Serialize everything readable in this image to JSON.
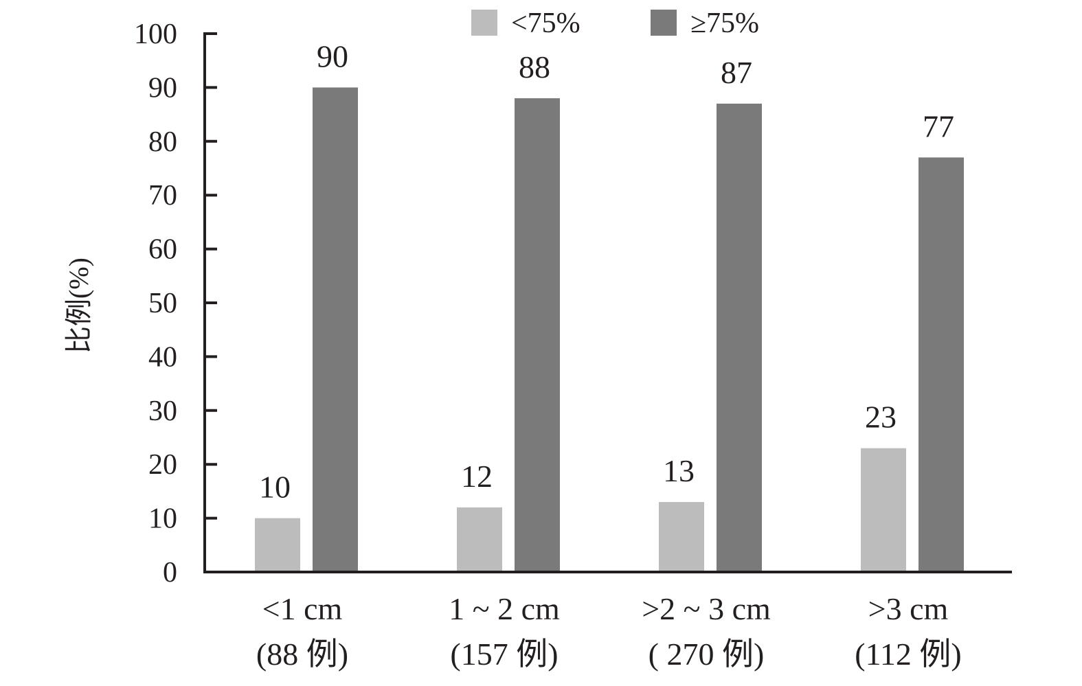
{
  "chart_data": {
    "type": "bar",
    "title": "",
    "xlabel": "",
    "ylabel": "比例(%)",
    "ylim": [
      0,
      100
    ],
    "yticks": [
      0,
      10,
      20,
      30,
      40,
      50,
      60,
      70,
      80,
      90,
      100
    ],
    "categories": [
      {
        "line1": "<1 cm",
        "line2": "(88 例)"
      },
      {
        "line1": "1 ~ 2 cm",
        "line2": "(157 例)"
      },
      {
        "line1": ">2 ~ 3 cm",
        "line2": "( 270 例)"
      },
      {
        "line1": ">3 cm",
        "line2": "(112 例)"
      }
    ],
    "series": [
      {
        "name": "<75%",
        "values": [
          10,
          12,
          13,
          23
        ],
        "color": "#bcbcbc"
      },
      {
        "name": "≥75%",
        "values": [
          90,
          88,
          87,
          77
        ],
        "color": "#7b7a7a"
      }
    ],
    "legend_position": "top",
    "grid": false
  }
}
